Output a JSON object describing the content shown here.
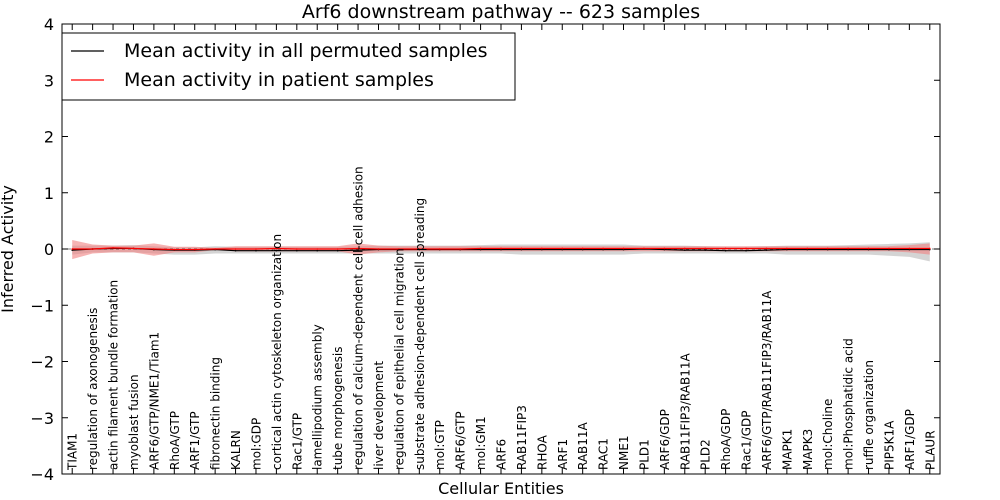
{
  "chart_data": {
    "type": "line",
    "title": "Arf6 downstream pathway -- 623 samples",
    "xlabel": "Cellular Entities",
    "ylabel": "Inferred Activity",
    "ylim": [
      -4,
      4
    ],
    "yticks": [
      "4",
      "3",
      "2",
      "1",
      "0",
      "−1",
      "−2",
      "−3",
      "−4"
    ],
    "ytick_values": [
      4,
      3,
      2,
      1,
      0,
      -1,
      -2,
      -3,
      -4
    ],
    "legend_position": "top-left",
    "categories": [
      "TIAM1",
      "regulation of axonogenesis",
      "actin filament bundle formation",
      "myoblast fusion",
      "ARF6/GTP/NME1/Tiam1",
      "RhoA/GTP",
      "ARF1/GTP",
      "fibronectin binding",
      "KALRN",
      "mol:GDP",
      "cortical actin cytoskeleton organization",
      "Rac1/GTP",
      "lamellipodium assembly",
      "tube morphogenesis",
      "regulation of calcium-dependent cell-cell adhesion",
      "liver development",
      "regulation of epithelial cell migration",
      "substrate adhesion-dependent cell spreading",
      "mol:GTP",
      "ARF6/GTP",
      "mol:GM1",
      "ARF6",
      "RAB11FIP3",
      "RHOA",
      "ARF1",
      "RAB11A",
      "RAC1",
      "NME1",
      "PLD1",
      "ARF6/GDP",
      "RAB11FIP3/RAB11A",
      "PLD2",
      "RhoA/GDP",
      "Rac1/GDP",
      "ARF6/GTP/RAB11FIP3/RAB11A",
      "MAPK1",
      "MAPK3",
      "mol:Choline",
      "mol:Phosphatidic acid",
      "ruffle organization",
      "PIP5K1A",
      "ARF1/GDP",
      "PLAUR"
    ],
    "series": [
      {
        "name": "Mean activity in all permuted samples",
        "color": "#000000",
        "values": [
          -0.02,
          0.0,
          0.01,
          0.01,
          -0.01,
          -0.02,
          -0.02,
          -0.01,
          -0.03,
          -0.03,
          -0.03,
          -0.03,
          -0.03,
          -0.03,
          -0.02,
          -0.01,
          -0.01,
          -0.01,
          -0.01,
          -0.01,
          -0.01,
          -0.01,
          -0.01,
          -0.01,
          -0.01,
          -0.01,
          -0.01,
          -0.01,
          0.0,
          -0.01,
          -0.02,
          -0.02,
          -0.03,
          -0.03,
          -0.02,
          -0.01,
          -0.01,
          -0.01,
          -0.01,
          -0.01,
          -0.01,
          -0.01,
          -0.01
        ],
        "band_low": [
          -0.1,
          -0.06,
          -0.06,
          -0.06,
          -0.08,
          -0.1,
          -0.1,
          -0.08,
          -0.08,
          -0.08,
          -0.08,
          -0.08,
          -0.08,
          -0.08,
          -0.08,
          -0.08,
          -0.08,
          -0.08,
          -0.08,
          -0.08,
          -0.08,
          -0.08,
          -0.1,
          -0.1,
          -0.1,
          -0.1,
          -0.1,
          -0.1,
          -0.08,
          -0.08,
          -0.08,
          -0.08,
          -0.08,
          -0.08,
          -0.08,
          -0.1,
          -0.1,
          -0.1,
          -0.1,
          -0.1,
          -0.12,
          -0.14,
          -0.22
        ],
        "band_high": [
          0.06,
          0.06,
          0.06,
          0.07,
          0.05,
          0.03,
          0.03,
          0.05,
          0.04,
          0.04,
          0.04,
          0.04,
          0.04,
          0.04,
          0.05,
          0.06,
          0.06,
          0.06,
          0.06,
          0.06,
          0.07,
          0.08,
          0.08,
          0.08,
          0.08,
          0.08,
          0.08,
          0.08,
          0.06,
          0.06,
          0.06,
          0.05,
          0.04,
          0.04,
          0.05,
          0.06,
          0.06,
          0.06,
          0.07,
          0.08,
          0.09,
          0.1,
          0.12
        ],
        "band_color": "#b0b0b0"
      },
      {
        "name": "Mean activity in patient samples",
        "color": "#ff0000",
        "values": [
          0.0,
          0.0,
          0.02,
          0.01,
          0.0,
          -0.01,
          -0.01,
          0.0,
          0.0,
          0.0,
          0.01,
          0.0,
          0.0,
          0.0,
          0.01,
          0.0,
          0.0,
          0.0,
          0.0,
          0.0,
          0.01,
          0.01,
          0.01,
          0.01,
          0.01,
          0.01,
          0.01,
          0.01,
          0.01,
          0.01,
          0.01,
          0.01,
          0.01,
          0.01,
          0.01,
          0.01,
          0.01,
          0.01,
          0.01,
          0.01,
          0.01,
          0.01,
          0.01
        ],
        "band_low": [
          -0.18,
          -0.08,
          -0.06,
          -0.06,
          -0.12,
          -0.06,
          -0.06,
          -0.02,
          -0.04,
          -0.04,
          -0.04,
          -0.04,
          -0.04,
          -0.04,
          -0.1,
          -0.06,
          -0.04,
          -0.04,
          -0.04,
          -0.04,
          -0.04,
          -0.04,
          -0.04,
          -0.04,
          -0.04,
          -0.04,
          -0.04,
          -0.04,
          -0.04,
          -0.04,
          -0.04,
          -0.04,
          -0.04,
          -0.04,
          -0.04,
          -0.04,
          -0.04,
          -0.04,
          -0.04,
          -0.04,
          -0.04,
          -0.06,
          -0.1
        ],
        "band_high": [
          0.16,
          0.08,
          0.06,
          0.06,
          0.1,
          0.04,
          0.04,
          0.02,
          0.05,
          0.05,
          0.05,
          0.05,
          0.05,
          0.05,
          0.1,
          0.06,
          0.05,
          0.05,
          0.05,
          0.05,
          0.05,
          0.05,
          0.05,
          0.05,
          0.05,
          0.05,
          0.05,
          0.05,
          0.05,
          0.05,
          0.05,
          0.05,
          0.05,
          0.05,
          0.05,
          0.05,
          0.05,
          0.05,
          0.05,
          0.05,
          0.05,
          0.07,
          0.1
        ],
        "band_color": "#f08080"
      }
    ]
  }
}
